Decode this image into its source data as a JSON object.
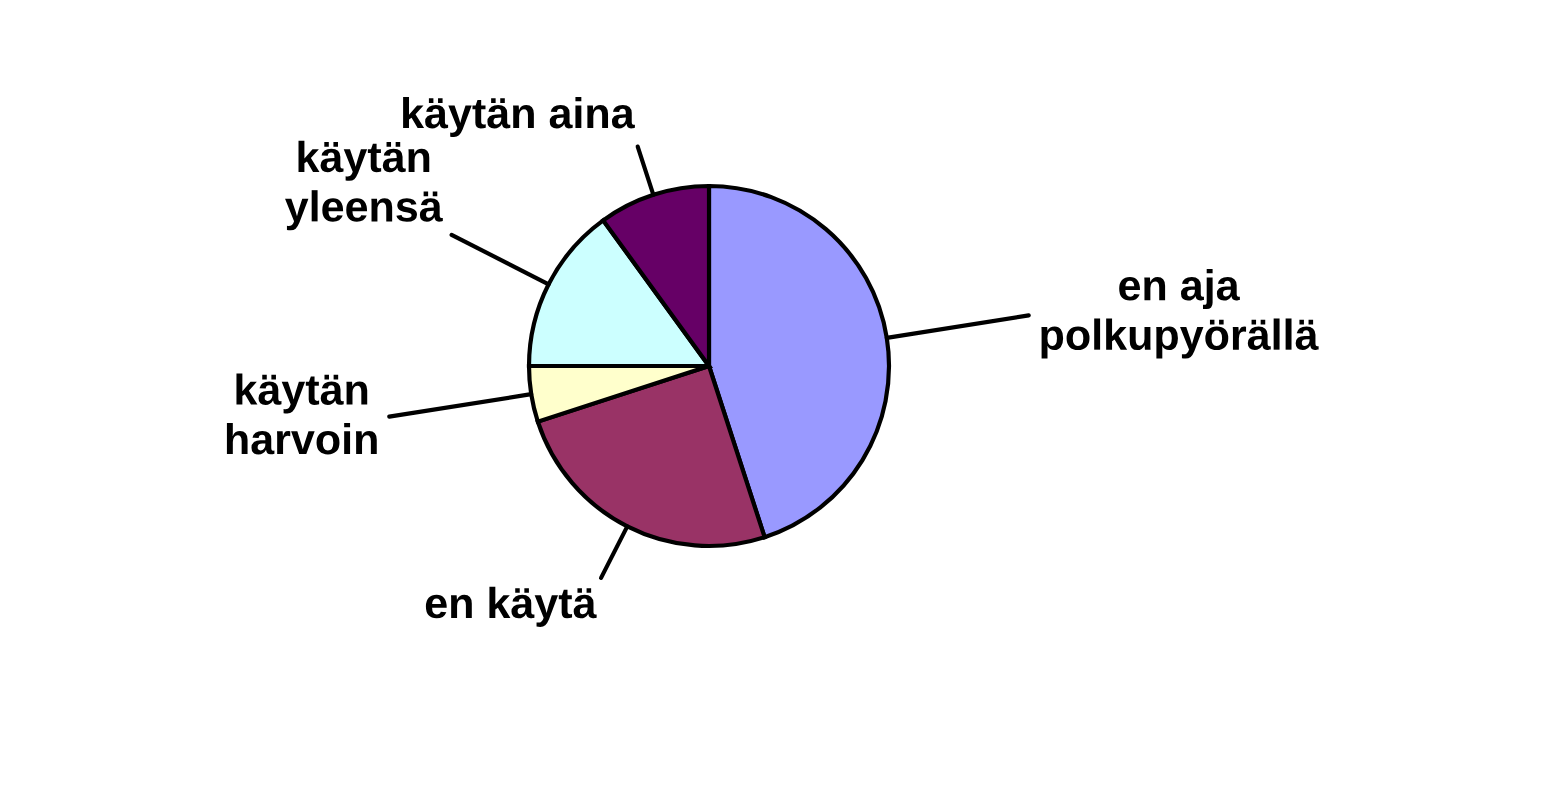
{
  "chart_data": {
    "type": "pie",
    "categories": [
      "en aja\npolkupyörällä",
      "en käytä",
      "käytän\nharvoin",
      "käytän\nyleensä",
      "käytän aina"
    ],
    "values": [
      45,
      25,
      5,
      15,
      10
    ],
    "colors": [
      "#9999ff",
      "#993366",
      "#ffffcc",
      "#ccffff",
      "#660066"
    ],
    "legend": false
  }
}
